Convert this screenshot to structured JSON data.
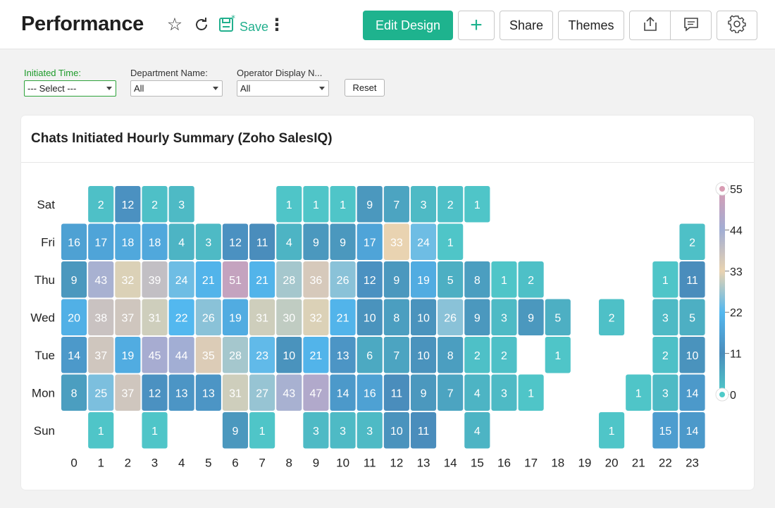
{
  "header": {
    "title": "Performance",
    "save_label": "Save",
    "edit_design_label": "Edit Design",
    "add_label": "+",
    "share_label": "Share",
    "themes_label": "Themes"
  },
  "filters": [
    {
      "label": "Initiated Time:",
      "value": "--- Select ---",
      "active": true
    },
    {
      "label": "Department Name:",
      "value": "All",
      "active": false
    },
    {
      "label": "Operator Display N...",
      "value": "All",
      "active": false
    }
  ],
  "reset_label": "Reset",
  "card": {
    "title": "Chats Initiated Hourly Summary (Zoho SalesIQ)"
  },
  "colors": {
    "accent": "#1eb38e",
    "filter_active": "#1d9a2a",
    "scale": [
      "#4fcbc9",
      "#4a8dbc",
      "#53b8ef",
      "#e9d3b1",
      "#a2aed4",
      "#d89cb3"
    ]
  },
  "chart_data": {
    "type": "heatmap",
    "title": "Chats Initiated Hourly Summary (Zoho SalesIQ)",
    "x": [
      "0",
      "1",
      "2",
      "3",
      "4",
      "5",
      "6",
      "7",
      "8",
      "9",
      "10",
      "11",
      "12",
      "13",
      "14",
      "15",
      "16",
      "17",
      "18",
      "19",
      "20",
      "21",
      "22",
      "23"
    ],
    "y": [
      "Sat",
      "Fri",
      "Thu",
      "Wed",
      "Tue",
      "Mon",
      "Sun"
    ],
    "values": [
      [
        null,
        2,
        12,
        2,
        3,
        null,
        null,
        null,
        1,
        1,
        1,
        9,
        7,
        3,
        2,
        1,
        null,
        null,
        null,
        null,
        null,
        null,
        null,
        null
      ],
      [
        16,
        17,
        18,
        18,
        4,
        3,
        12,
        11,
        4,
        9,
        9,
        17,
        33,
        24,
        1,
        null,
        null,
        null,
        null,
        null,
        null,
        null,
        null,
        2
      ],
      [
        9,
        43,
        32,
        39,
        24,
        21,
        51,
        21,
        28,
        36,
        26,
        12,
        9,
        19,
        5,
        8,
        1,
        2,
        null,
        null,
        null,
        null,
        1,
        11
      ],
      [
        20,
        38,
        37,
        31,
        22,
        26,
        19,
        31,
        30,
        32,
        21,
        10,
        8,
        10,
        26,
        9,
        3,
        9,
        5,
        null,
        2,
        null,
        3,
        5
      ],
      [
        14,
        37,
        19,
        45,
        44,
        35,
        28,
        23,
        10,
        21,
        13,
        6,
        7,
        10,
        8,
        2,
        2,
        null,
        1,
        null,
        null,
        null,
        2,
        10
      ],
      [
        8,
        25,
        37,
        12,
        13,
        13,
        31,
        27,
        43,
        47,
        14,
        16,
        11,
        9,
        7,
        4,
        3,
        1,
        null,
        null,
        null,
        1,
        3,
        14
      ],
      [
        null,
        1,
        null,
        1,
        null,
        null,
        9,
        1,
        null,
        3,
        3,
        3,
        10,
        11,
        null,
        4,
        null,
        null,
        null,
        null,
        1,
        null,
        15,
        14
      ]
    ],
    "color_scale": {
      "min": 0,
      "max": 55,
      "ticks": [
        0,
        11,
        22,
        33,
        44,
        55
      ]
    }
  }
}
